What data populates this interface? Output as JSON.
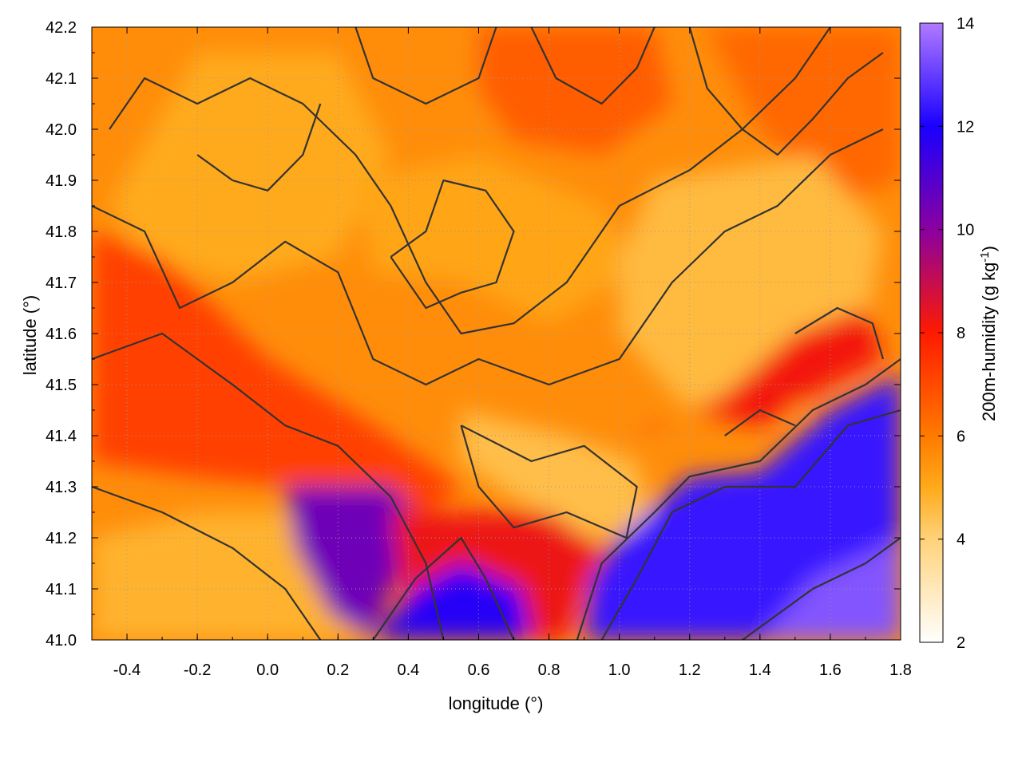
{
  "chart_data": {
    "type": "heatmap",
    "title": "",
    "xlabel": "longitude (°)",
    "ylabel": "latitude (°)",
    "xlim": [
      -0.5,
      1.8
    ],
    "ylim": [
      41.0,
      42.2
    ],
    "x_ticks": [
      "-0.4",
      "-0.2",
      "0.0",
      "0.2",
      "0.4",
      "0.6",
      "0.8",
      "1.0",
      "1.2",
      "1.4",
      "1.6",
      "1.8"
    ],
    "x_tick_values": [
      -0.4,
      -0.2,
      0.0,
      0.2,
      0.4,
      0.6,
      0.8,
      1.0,
      1.2,
      1.4,
      1.6,
      1.8
    ],
    "y_ticks": [
      "41.0",
      "41.1",
      "41.2",
      "41.3",
      "41.4",
      "41.5",
      "41.6",
      "41.7",
      "41.8",
      "41.9",
      "42.0",
      "42.1",
      "42.2"
    ],
    "y_tick_values": [
      41.0,
      41.1,
      41.2,
      41.3,
      41.4,
      41.5,
      41.6,
      41.7,
      41.8,
      41.9,
      42.0,
      42.1,
      42.2
    ],
    "grid": true,
    "colorbar": {
      "label_text": "200m-humidity (g kg",
      "label_sup": "-1",
      "label_close": ")",
      "range": [
        2,
        14
      ],
      "ticks": [
        "2",
        "4",
        "6",
        "8",
        "10",
        "12",
        "14"
      ],
      "tick_values": [
        2,
        4,
        6,
        8,
        10,
        12,
        14
      ],
      "palette": [
        {
          "value": 2,
          "color": "#ffffff"
        },
        {
          "value": 4,
          "color": "#ffd27a"
        },
        {
          "value": 5,
          "color": "#ffaa1a"
        },
        {
          "value": 6,
          "color": "#ff7a00"
        },
        {
          "value": 8,
          "color": "#ff1a00"
        },
        {
          "value": 10,
          "color": "#8a00a0"
        },
        {
          "value": 12,
          "color": "#1a00ff"
        },
        {
          "value": 14,
          "color": "#b07aff"
        }
      ]
    },
    "contour_color": "#333333",
    "field_regions": [
      {
        "name": "background",
        "value": 5.6,
        "points": [
          [
            -0.5,
            41.0
          ],
          [
            1.8,
            41.0
          ],
          [
            1.8,
            42.2
          ],
          [
            -0.5,
            42.2
          ]
        ]
      },
      {
        "name": "north-dry-a",
        "value": 5.0,
        "points": [
          [
            -0.45,
            41.85
          ],
          [
            -0.2,
            42.15
          ],
          [
            0.2,
            42.15
          ],
          [
            0.35,
            41.95
          ],
          [
            0.2,
            41.75
          ],
          [
            -0.1,
            41.7
          ],
          [
            -0.35,
            41.75
          ]
        ]
      },
      {
        "name": "north-dry-b",
        "value": 5.1,
        "points": [
          [
            0.25,
            41.9
          ],
          [
            0.6,
            41.95
          ],
          [
            0.95,
            41.85
          ],
          [
            1.05,
            41.72
          ],
          [
            0.8,
            41.62
          ],
          [
            0.55,
            41.7
          ],
          [
            0.3,
            41.72
          ]
        ]
      },
      {
        "name": "north-moist",
        "value": 6.6,
        "points": [
          [
            0.6,
            42.2
          ],
          [
            1.1,
            42.2
          ],
          [
            1.15,
            42.05
          ],
          [
            0.95,
            41.95
          ],
          [
            0.7,
            41.98
          ],
          [
            0.6,
            42.08
          ]
        ]
      },
      {
        "name": "northeast-moist",
        "value": 6.4,
        "points": [
          [
            1.25,
            42.2
          ],
          [
            1.8,
            42.2
          ],
          [
            1.8,
            41.9
          ],
          [
            1.6,
            41.85
          ],
          [
            1.4,
            42.0
          ]
        ]
      },
      {
        "name": "east-dry",
        "value": 4.6,
        "points": [
          [
            1.1,
            41.9
          ],
          [
            1.55,
            41.95
          ],
          [
            1.75,
            41.8
          ],
          [
            1.7,
            41.6
          ],
          [
            1.5,
            41.45
          ],
          [
            1.2,
            41.45
          ],
          [
            1.0,
            41.6
          ],
          [
            1.0,
            41.75
          ]
        ]
      },
      {
        "name": "central-dry",
        "value": 4.5,
        "points": [
          [
            0.55,
            41.45
          ],
          [
            0.85,
            41.4
          ],
          [
            1.05,
            41.35
          ],
          [
            1.1,
            41.22
          ],
          [
            0.9,
            41.2
          ],
          [
            0.7,
            41.28
          ],
          [
            0.55,
            41.35
          ]
        ]
      },
      {
        "name": "west-moist",
        "value": 7.2,
        "points": [
          [
            -0.5,
            41.8
          ],
          [
            -0.3,
            41.75
          ],
          [
            0.0,
            41.55
          ],
          [
            0.3,
            41.42
          ],
          [
            0.55,
            41.3
          ],
          [
            0.4,
            41.22
          ],
          [
            0.1,
            41.3
          ],
          [
            -0.2,
            41.32
          ],
          [
            -0.5,
            41.35
          ]
        ]
      },
      {
        "name": "southwest-dry",
        "value": 4.8,
        "points": [
          [
            -0.5,
            41.0
          ],
          [
            0.3,
            41.0
          ],
          [
            0.2,
            41.15
          ],
          [
            0.05,
            41.25
          ],
          [
            -0.2,
            41.25
          ],
          [
            -0.5,
            41.2
          ]
        ]
      },
      {
        "name": "ebro-moist",
        "value": 10.5,
        "points": [
          [
            0.05,
            41.3
          ],
          [
            0.35,
            41.3
          ],
          [
            0.45,
            41.22
          ],
          [
            0.35,
            41.1
          ],
          [
            0.3,
            41.0
          ],
          [
            0.18,
            41.05
          ],
          [
            0.08,
            41.18
          ]
        ]
      },
      {
        "name": "valley-moist",
        "value": 8.3,
        "points": [
          [
            0.35,
            41.25
          ],
          [
            0.8,
            41.25
          ],
          [
            0.95,
            41.18
          ],
          [
            0.85,
            41.0
          ],
          [
            0.4,
            41.0
          ]
        ]
      },
      {
        "name": "coast-humid-a",
        "value": 11.8,
        "points": [
          [
            0.3,
            41.0
          ],
          [
            0.75,
            41.0
          ],
          [
            0.72,
            41.1
          ],
          [
            0.55,
            41.15
          ],
          [
            0.42,
            41.1
          ]
        ]
      },
      {
        "name": "coast-humid-b",
        "value": 12.4,
        "points": [
          [
            0.9,
            41.0
          ],
          [
            1.8,
            41.0
          ],
          [
            1.8,
            41.52
          ],
          [
            1.6,
            41.45
          ],
          [
            1.4,
            41.33
          ],
          [
            1.2,
            41.32
          ],
          [
            1.0,
            41.2
          ],
          [
            0.92,
            41.12
          ]
        ]
      },
      {
        "name": "sea-far",
        "value": 13.4,
        "points": [
          [
            1.4,
            41.0
          ],
          [
            1.8,
            41.0
          ],
          [
            1.8,
            41.2
          ],
          [
            1.55,
            41.12
          ]
        ]
      },
      {
        "name": "coastal-front",
        "value": 8.2,
        "points": [
          [
            1.0,
            41.38
          ],
          [
            1.2,
            41.45
          ],
          [
            1.4,
            41.42
          ],
          [
            1.6,
            41.5
          ],
          [
            1.75,
            41.55
          ],
          [
            1.7,
            41.65
          ],
          [
            1.5,
            41.6
          ],
          [
            1.3,
            41.48
          ],
          [
            1.1,
            41.42
          ]
        ]
      }
    ],
    "contours": [
      [
        [
          -0.5,
          41.55
        ],
        [
          -0.3,
          41.6
        ],
        [
          -0.1,
          41.5
        ],
        [
          0.05,
          41.42
        ],
        [
          0.2,
          41.38
        ],
        [
          0.35,
          41.28
        ],
        [
          0.45,
          41.15
        ],
        [
          0.5,
          41.0
        ]
      ],
      [
        [
          -0.5,
          41.3
        ],
        [
          -0.3,
          41.25
        ],
        [
          -0.1,
          41.18
        ],
        [
          0.05,
          41.1
        ],
        [
          0.15,
          41.0
        ]
      ],
      [
        [
          0.3,
          41.0
        ],
        [
          0.42,
          41.12
        ],
        [
          0.55,
          41.2
        ],
        [
          0.62,
          41.12
        ],
        [
          0.7,
          41.0
        ]
      ],
      [
        [
          0.88,
          41.0
        ],
        [
          0.95,
          41.15
        ],
        [
          1.1,
          41.25
        ],
        [
          1.2,
          41.32
        ],
        [
          1.4,
          41.35
        ],
        [
          1.55,
          41.45
        ],
        [
          1.7,
          41.5
        ],
        [
          1.8,
          41.55
        ]
      ],
      [
        [
          0.95,
          41.0
        ],
        [
          1.05,
          41.12
        ],
        [
          1.15,
          41.25
        ],
        [
          1.3,
          41.3
        ],
        [
          1.5,
          41.3
        ],
        [
          1.65,
          41.42
        ],
        [
          1.8,
          41.45
        ]
      ],
      [
        [
          1.35,
          41.0
        ],
        [
          1.55,
          41.1
        ],
        [
          1.7,
          41.15
        ],
        [
          1.8,
          41.2
        ]
      ],
      [
        [
          0.55,
          41.42
        ],
        [
          0.75,
          41.35
        ],
        [
          0.9,
          41.38
        ],
        [
          1.05,
          41.3
        ],
        [
          1.02,
          41.2
        ],
        [
          0.85,
          41.25
        ],
        [
          0.7,
          41.22
        ],
        [
          0.6,
          41.3
        ],
        [
          0.55,
          41.42
        ]
      ],
      [
        [
          -0.45,
          42.0
        ],
        [
          -0.35,
          42.1
        ],
        [
          -0.2,
          42.05
        ],
        [
          -0.05,
          42.1
        ],
        [
          0.1,
          42.05
        ],
        [
          0.25,
          41.95
        ],
        [
          0.35,
          41.85
        ],
        [
          0.45,
          41.7
        ],
        [
          0.55,
          41.6
        ],
        [
          0.7,
          41.62
        ],
        [
          0.85,
          41.7
        ],
        [
          1.0,
          41.85
        ],
        [
          1.2,
          41.92
        ],
        [
          1.35,
          42.0
        ],
        [
          1.5,
          42.1
        ],
        [
          1.6,
          42.2
        ]
      ],
      [
        [
          -0.5,
          41.85
        ],
        [
          -0.35,
          41.8
        ],
        [
          -0.25,
          41.65
        ],
        [
          -0.1,
          41.7
        ],
        [
          0.05,
          41.78
        ],
        [
          0.2,
          41.72
        ],
        [
          0.3,
          41.55
        ],
        [
          0.45,
          41.5
        ],
        [
          0.6,
          41.55
        ],
        [
          0.8,
          41.5
        ],
        [
          1.0,
          41.55
        ],
        [
          1.15,
          41.7
        ],
        [
          1.3,
          41.8
        ],
        [
          1.45,
          41.85
        ],
        [
          1.6,
          41.95
        ],
        [
          1.75,
          42.0
        ]
      ],
      [
        [
          0.25,
          42.2
        ],
        [
          0.3,
          42.1
        ],
        [
          0.45,
          42.05
        ],
        [
          0.6,
          42.1
        ],
        [
          0.65,
          42.2
        ]
      ],
      [
        [
          0.75,
          42.2
        ],
        [
          0.82,
          42.1
        ],
        [
          0.95,
          42.05
        ],
        [
          1.05,
          42.12
        ],
        [
          1.1,
          42.2
        ]
      ],
      [
        [
          1.2,
          42.2
        ],
        [
          1.25,
          42.08
        ],
        [
          1.35,
          42.0
        ],
        [
          1.45,
          41.95
        ],
        [
          1.55,
          42.02
        ],
        [
          1.65,
          42.1
        ],
        [
          1.75,
          42.15
        ]
      ],
      [
        [
          -0.2,
          41.95
        ],
        [
          -0.1,
          41.9
        ],
        [
          0.0,
          41.88
        ],
        [
          0.1,
          41.95
        ],
        [
          0.15,
          42.05
        ]
      ],
      [
        [
          0.35,
          41.75
        ],
        [
          0.45,
          41.8
        ],
        [
          0.5,
          41.9
        ],
        [
          0.62,
          41.88
        ],
        [
          0.7,
          41.8
        ],
        [
          0.65,
          41.7
        ],
        [
          0.55,
          41.68
        ],
        [
          0.45,
          41.65
        ],
        [
          0.35,
          41.75
        ]
      ],
      [
        [
          1.5,
          41.6
        ],
        [
          1.62,
          41.65
        ],
        [
          1.72,
          41.62
        ],
        [
          1.75,
          41.55
        ]
      ],
      [
        [
          1.3,
          41.4
        ],
        [
          1.4,
          41.45
        ],
        [
          1.5,
          41.42
        ]
      ]
    ]
  }
}
